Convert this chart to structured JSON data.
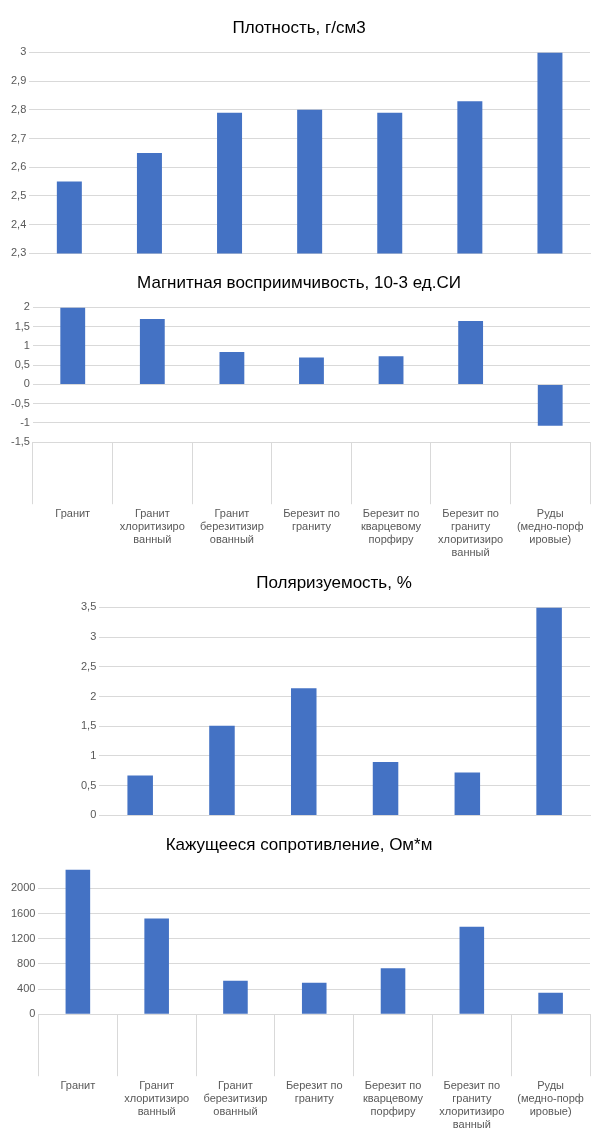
{
  "chart_data": [
    {
      "type": "bar",
      "title": "Плотность, г/см3",
      "categories": [
        "Гранит",
        "Гранит хлоритизированный",
        "Гранит березитизированный",
        "Березит по граниту",
        "Березит по кварцевому порфиру",
        "Березит по граниту хлоритизированный",
        "Руды (медно-порфировые)"
      ],
      "values": [
        2.55,
        2.65,
        2.79,
        2.8,
        2.79,
        2.83,
        3.0
      ],
      "color": "#4472c4",
      "ylim": [
        2.3,
        3
      ],
      "yticks": [
        {
          "value": 2.3,
          "label": "2,3"
        },
        {
          "value": 2.4,
          "label": "2,4"
        },
        {
          "value": 2.5,
          "label": "2,5"
        },
        {
          "value": 2.6,
          "label": "2,6"
        },
        {
          "value": 2.7,
          "label": "2,7"
        },
        {
          "value": 2.8,
          "label": "2,8"
        },
        {
          "value": 2.9,
          "label": "2,9"
        },
        3
      ],
      "grid": "y",
      "legend": false,
      "tick_labels": "y"
    },
    {
      "type": "bar",
      "title": "Магнитная восприимчивость, 10-3 ед.СИ",
      "categories": [
        "Гранит",
        "Гранит хлоритизированный",
        "Гранит березитизированный",
        "Березит по граниту",
        "Березит по кварцевому порфиру",
        "Березит по граниту хлоритизированный",
        "Руды (медно-порфировые)"
      ],
      "values": [
        2,
        1.7,
        0.84,
        0.7,
        0.73,
        1.65,
        -1.07
      ],
      "color": "#4472c4",
      "ylim": [
        -1.5,
        2
      ],
      "yticks": [
        {
          "value": -1.5,
          "label": "-1,5"
        },
        -1,
        {
          "value": -0.5,
          "label": "-0,5"
        },
        0,
        {
          "value": 0.5,
          "label": "0,5"
        },
        1,
        {
          "value": 1.5,
          "label": "1,5"
        },
        2
      ],
      "grid": "y",
      "legend": false
    },
    {
      "type": "bar",
      "title": "Поляризуемость, %",
      "categories": [
        null,
        null,
        null,
        null,
        null,
        null
      ],
      "values": [
        0.67,
        1.51,
        2.14,
        0.9,
        0.72,
        3.5
      ],
      "color": "#4472c4",
      "ylim": [
        0,
        3.5
      ],
      "yticks": [
        0,
        {
          "value": 0.5,
          "label": "0,5"
        },
        1,
        {
          "value": 1.5,
          "label": "1,5"
        },
        2,
        {
          "value": 2.5,
          "label": "2,5"
        },
        3,
        {
          "value": 3.5,
          "label": "3,5"
        }
      ],
      "grid": "y",
      "legend": false,
      "tick_labels": "y"
    },
    {
      "type": "bar",
      "title": "Кажущееся сопротивление, Ом*м",
      "categories": [
        "Гранит",
        "Гранит хлоритизированный",
        "Гранит березитизированный",
        "Березит по граниту",
        "Березит по кварцевому порфиру",
        "Березит по граниту хлоритизированный",
        "Руды (медно-порфировые)"
      ],
      "values": [
        2300,
        1520,
        530,
        500,
        730,
        1390,
        340
      ],
      "color": "#4472c4",
      "ylim": [
        0,
        2300
      ],
      "yticks": [
        0,
        400,
        800,
        1200,
        1600,
        2000
      ],
      "grid": "y",
      "legend": false
    }
  ]
}
